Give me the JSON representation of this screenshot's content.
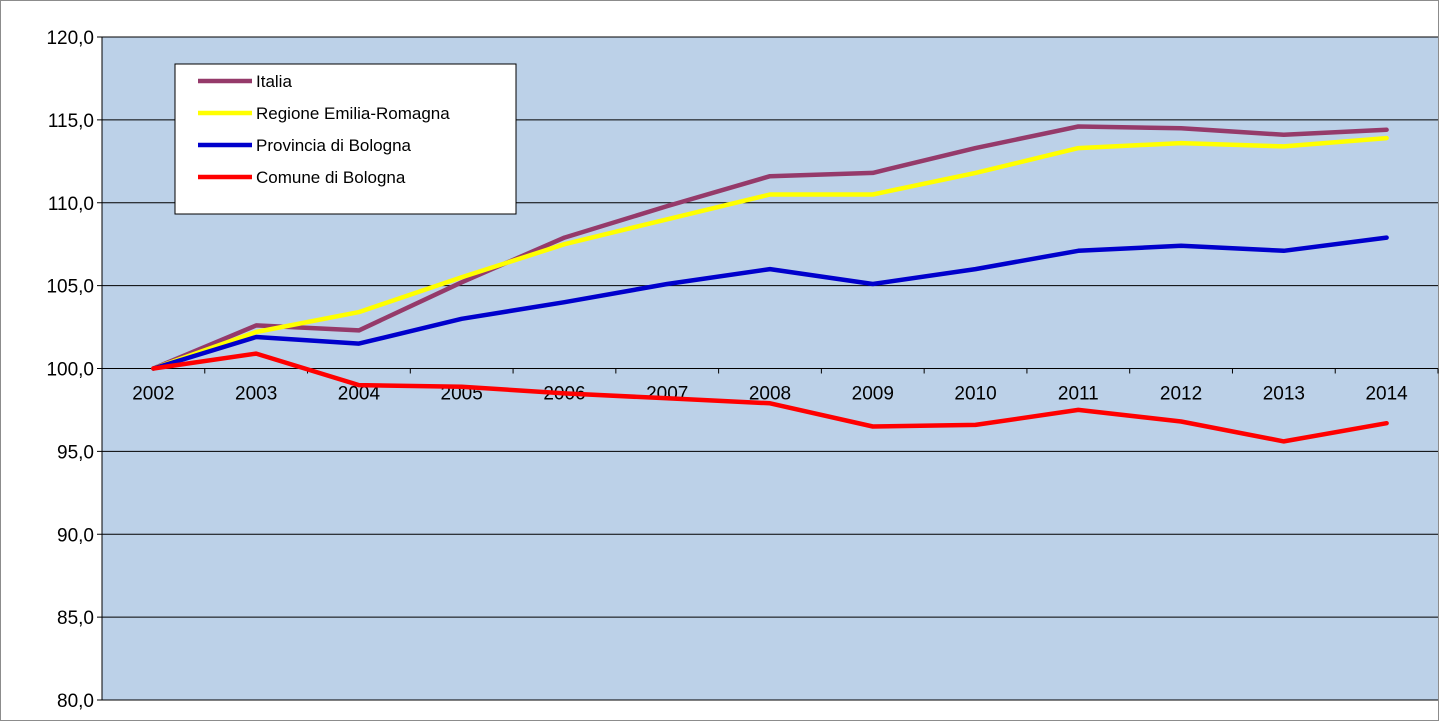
{
  "chart_data": {
    "type": "line",
    "title": "",
    "xlabel": "",
    "ylabel": "",
    "categories": [
      "2002",
      "2003",
      "2004",
      "2005",
      "2006",
      "2007",
      "2008",
      "2009",
      "2010",
      "2011",
      "2012",
      "2013",
      "2014"
    ],
    "ylim": [
      80,
      120
    ],
    "yticks": [
      "80,0",
      "85,0",
      "90,0",
      "95,0",
      "100,0",
      "105,0",
      "110,0",
      "115,0",
      "120,0"
    ],
    "x_axis_crosses_at": 100,
    "grid": true,
    "legend_position": "top-left",
    "plot_background": "#bcd1e8",
    "series": [
      {
        "name": "Italia",
        "color": "#953a6a",
        "values": [
          100.0,
          102.6,
          102.3,
          105.2,
          107.9,
          109.8,
          111.6,
          111.8,
          113.3,
          114.6,
          114.5,
          114.1,
          114.4
        ]
      },
      {
        "name": "Regione Emilia-Romagna",
        "color": "#ffff00",
        "values": [
          100.0,
          102.2,
          103.4,
          105.5,
          107.5,
          109.0,
          110.5,
          110.5,
          111.8,
          113.3,
          113.6,
          113.4,
          113.9
        ]
      },
      {
        "name": "Provincia di Bologna",
        "color": "#0000cc",
        "values": [
          100.0,
          101.9,
          101.5,
          103.0,
          104.0,
          105.1,
          106.0,
          105.1,
          106.0,
          107.1,
          107.4,
          107.1,
          107.9
        ]
      },
      {
        "name": "Comune di Bologna",
        "color": "#ff0000",
        "values": [
          100.0,
          100.9,
          99.0,
          98.9,
          98.5,
          98.2,
          97.9,
          96.5,
          96.6,
          97.5,
          96.8,
          95.6,
          96.7
        ]
      }
    ]
  }
}
